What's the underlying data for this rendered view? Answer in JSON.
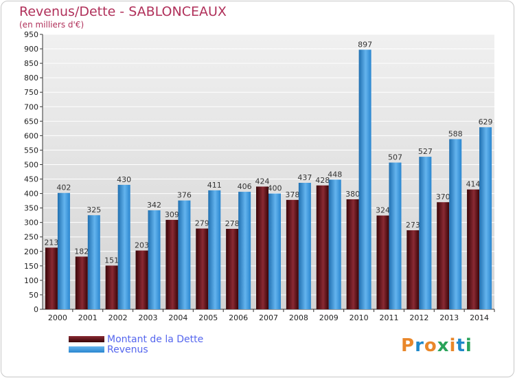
{
  "chart_data": {
    "type": "bar",
    "title": "Revenus/Dette - SABLONCEAUX",
    "subtitle": "(en milliers d'€)",
    "categories": [
      "2000",
      "2001",
      "2002",
      "2003",
      "2004",
      "2005",
      "2006",
      "2007",
      "2008",
      "2009",
      "2010",
      "2011",
      "2012",
      "2013",
      "2014"
    ],
    "series": [
      {
        "name": "Montant de la Dette",
        "values": [
          213,
          182,
          151,
          203,
          309,
          279,
          278,
          424,
          378,
          428,
          380,
          324,
          273,
          370,
          414
        ],
        "color": "#7a1a22"
      },
      {
        "name": "Revenus",
        "values": [
          402,
          325,
          430,
          342,
          376,
          411,
          406,
          400,
          437,
          448,
          897,
          507,
          527,
          588,
          629
        ],
        "color": "#4fa3e3"
      }
    ],
    "yticks": [
      0,
      50,
      100,
      150,
      200,
      250,
      300,
      350,
      400,
      450,
      500,
      550,
      600,
      650,
      700,
      750,
      800,
      850,
      900,
      950
    ],
    "ylim": [
      0,
      950
    ],
    "grid": true,
    "legend_position": "bottom-left"
  },
  "logo": {
    "text": "Proxiti",
    "colors": [
      "#e9872a",
      "#1e88c9",
      "#e9872a",
      "#2aa35a",
      "#e9872a",
      "#1e88c9",
      "#2aa35a"
    ]
  }
}
